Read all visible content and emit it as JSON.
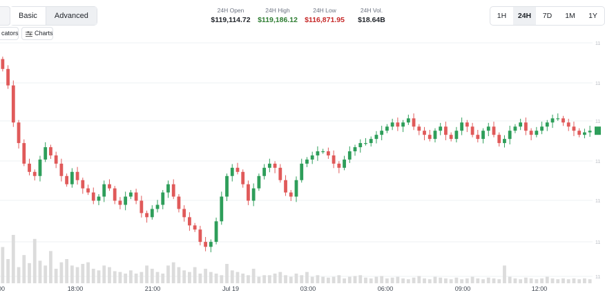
{
  "header": {
    "modes": [
      "Basic",
      "Advanced"
    ],
    "active_mode": "Advanced",
    "stats": [
      {
        "label": "24H Open",
        "value": "$119,114.72",
        "color": "#1f2329"
      },
      {
        "label": "24H High",
        "value": "$119,186.12",
        "color": "#2e7d32"
      },
      {
        "label": "24H Low",
        "value": "$116,871.95",
        "color": "#c62828"
      },
      {
        "label": "24H Vol.",
        "value": "$18.64B",
        "color": "#1f2329"
      }
    ],
    "ranges": [
      "1H",
      "24H",
      "7D",
      "1M",
      "1Y"
    ],
    "active_range": "24H"
  },
  "toolbar": {
    "indicators_label": "cators",
    "charts_label": "Charts",
    "charts_icon": "bars-icon"
  },
  "colors": {
    "up": "#2e9e5a",
    "down": "#e05a5a",
    "volume": "#dcdcdc",
    "last_price_tag": "#2e9e5a"
  },
  "chart_data": {
    "type": "candlestick",
    "xlabel": "",
    "ylabel": "",
    "x_ticks": [
      "00",
      "18:00",
      "21:00",
      "Jul 19",
      "03:00",
      "06:00",
      "09:00",
      "12:00"
    ],
    "y_tick_labels_clipped": [
      "11",
      "11",
      "11",
      "11",
      "11",
      "11",
      "11"
    ],
    "ylim": [
      116800,
      119300
    ],
    "close_series": [
      119050,
      118850,
      118400,
      118150,
      117900,
      117800,
      117750,
      117950,
      118100,
      118000,
      117900,
      117750,
      117650,
      117800,
      117700,
      117600,
      117550,
      117450,
      117500,
      117650,
      117600,
      117450,
      117400,
      117500,
      117550,
      117450,
      117300,
      117250,
      117350,
      117400,
      117550,
      117650,
      117500,
      117350,
      117250,
      117150,
      117100,
      116950,
      116890,
      116950,
      117200,
      117500,
      117750,
      117850,
      117800,
      117650,
      117450,
      117600,
      117750,
      117850,
      117900,
      117850,
      117700,
      117550,
      117500,
      117700,
      117900,
      117950,
      118000,
      118050,
      118050,
      118000,
      117900,
      117850,
      117950,
      118050,
      118100,
      118150,
      118150,
      118200,
      118250,
      118300,
      118350,
      118400,
      118350,
      118400,
      118450,
      118350,
      118300,
      118250,
      118200,
      118300,
      118350,
      118250,
      118200,
      118300,
      118400,
      118350,
      118250,
      118200,
      118300,
      118350,
      118250,
      118150,
      118200,
      118300,
      118350,
      118400,
      118300,
      118250,
      118300,
      118350,
      118400,
      118450,
      118450,
      118400,
      118350,
      118300,
      118250,
      118280,
      118300
    ],
    "volume_series": [
      45,
      30,
      60,
      20,
      35,
      25,
      55,
      28,
      22,
      40,
      18,
      26,
      30,
      22,
      20,
      24,
      26,
      18,
      16,
      22,
      20,
      15,
      14,
      12,
      16,
      12,
      14,
      22,
      18,
      14,
      12,
      22,
      26,
      20,
      16,
      14,
      20,
      12,
      18,
      14,
      12,
      10,
      24,
      16,
      14,
      12,
      10,
      18,
      8,
      10,
      10,
      12,
      14,
      10,
      8,
      12,
      10,
      14,
      8,
      10,
      8,
      7,
      8,
      10,
      6,
      8,
      9,
      10,
      7,
      6,
      8,
      9,
      6,
      7,
      8,
      6,
      5,
      7,
      9,
      6,
      5,
      8,
      7,
      6,
      5,
      7,
      5,
      6,
      8,
      6,
      5,
      7,
      6,
      5,
      22,
      8,
      6,
      5,
      7,
      6,
      5,
      6,
      8,
      6,
      5,
      6,
      5,
      6,
      5,
      6,
      5
    ]
  }
}
